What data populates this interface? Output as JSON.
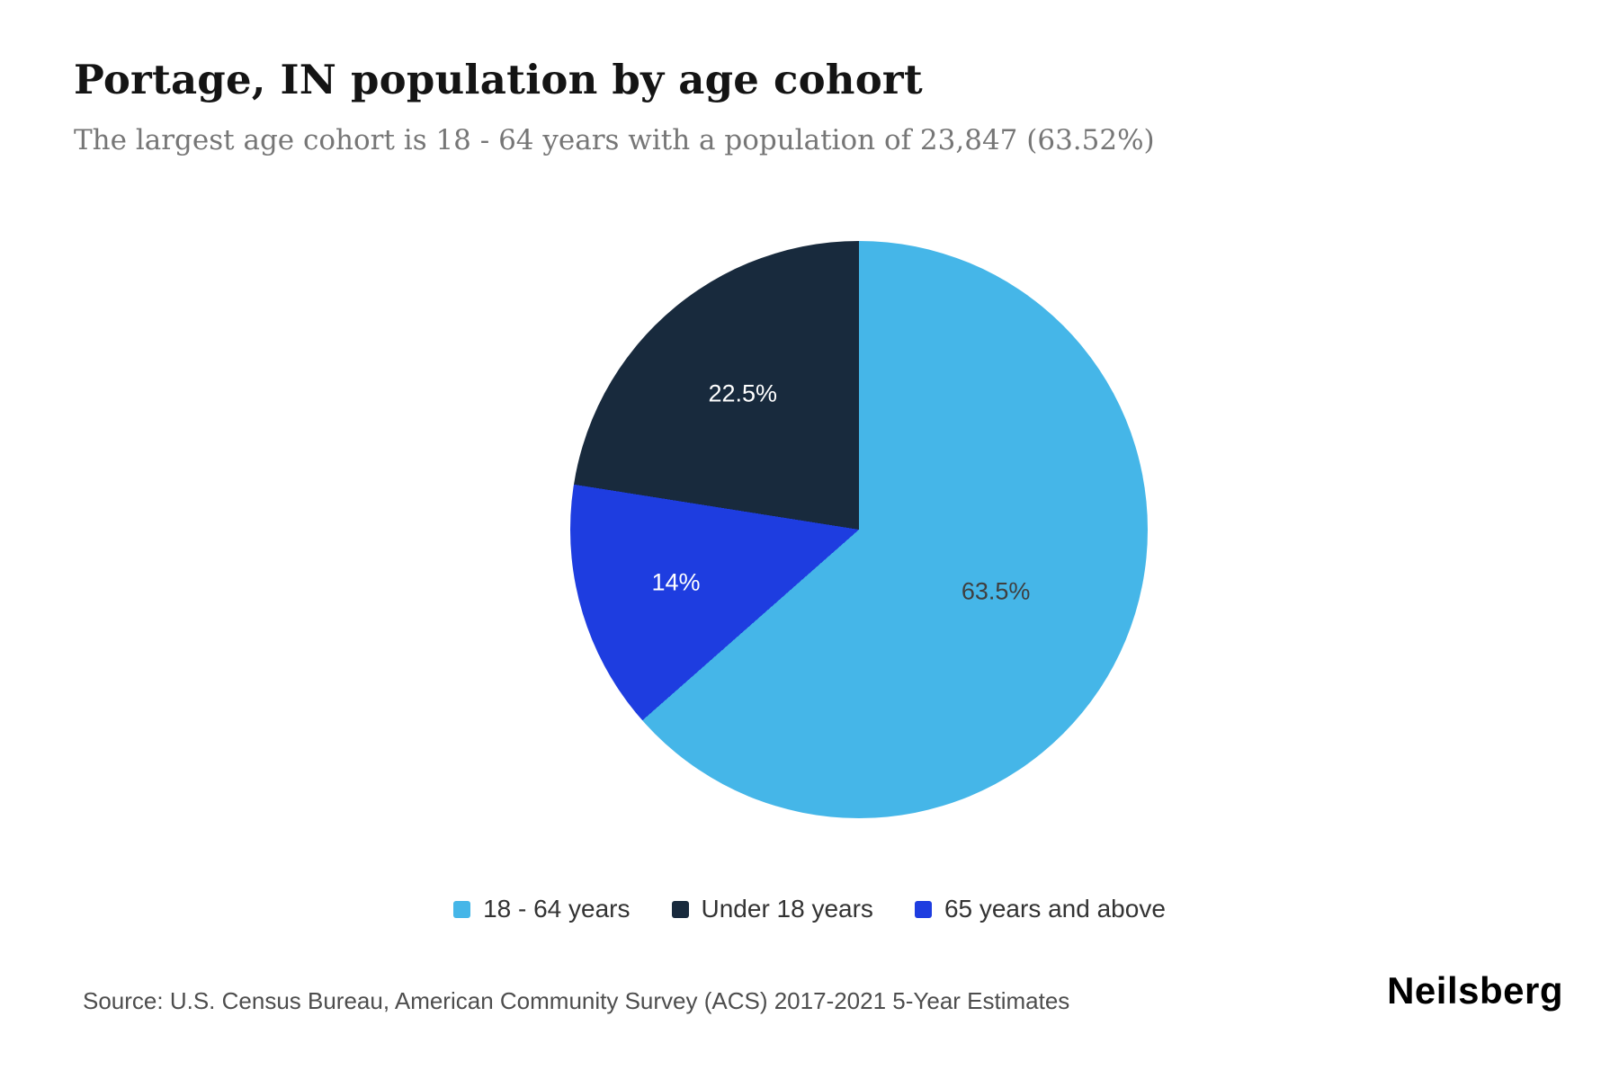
{
  "chart_data": {
    "type": "pie",
    "title": "Portage, IN population by age cohort",
    "subtitle": "The largest age cohort is 18 - 64 years with a population of 23,847 (63.52%)",
    "slices": [
      {
        "label": "18 - 64 years",
        "value": 63.5,
        "display": "63.5%",
        "color": "#45b6e8",
        "label_color": "#3f3f3f"
      },
      {
        "label": "Under 18 years",
        "value": 22.5,
        "display": "22.5%",
        "color": "#182a3d",
        "label_color": "#ffffff"
      },
      {
        "label": "65 years and above",
        "value": 14.0,
        "display": "14%",
        "color": "#1e3de0",
        "label_color": "#ffffff"
      }
    ],
    "draw_order": [
      0,
      2,
      1
    ],
    "start_angle_deg": 0,
    "legend_position": "bottom",
    "largest_cohort": {
      "label": "18 - 64 years",
      "population": "23,847",
      "share": "63.52%"
    }
  },
  "footer": {
    "source": "Source: U.S. Census Bureau, American Community Survey (ACS) 2017-2021 5-Year Estimates",
    "brand": "Neilsberg"
  }
}
